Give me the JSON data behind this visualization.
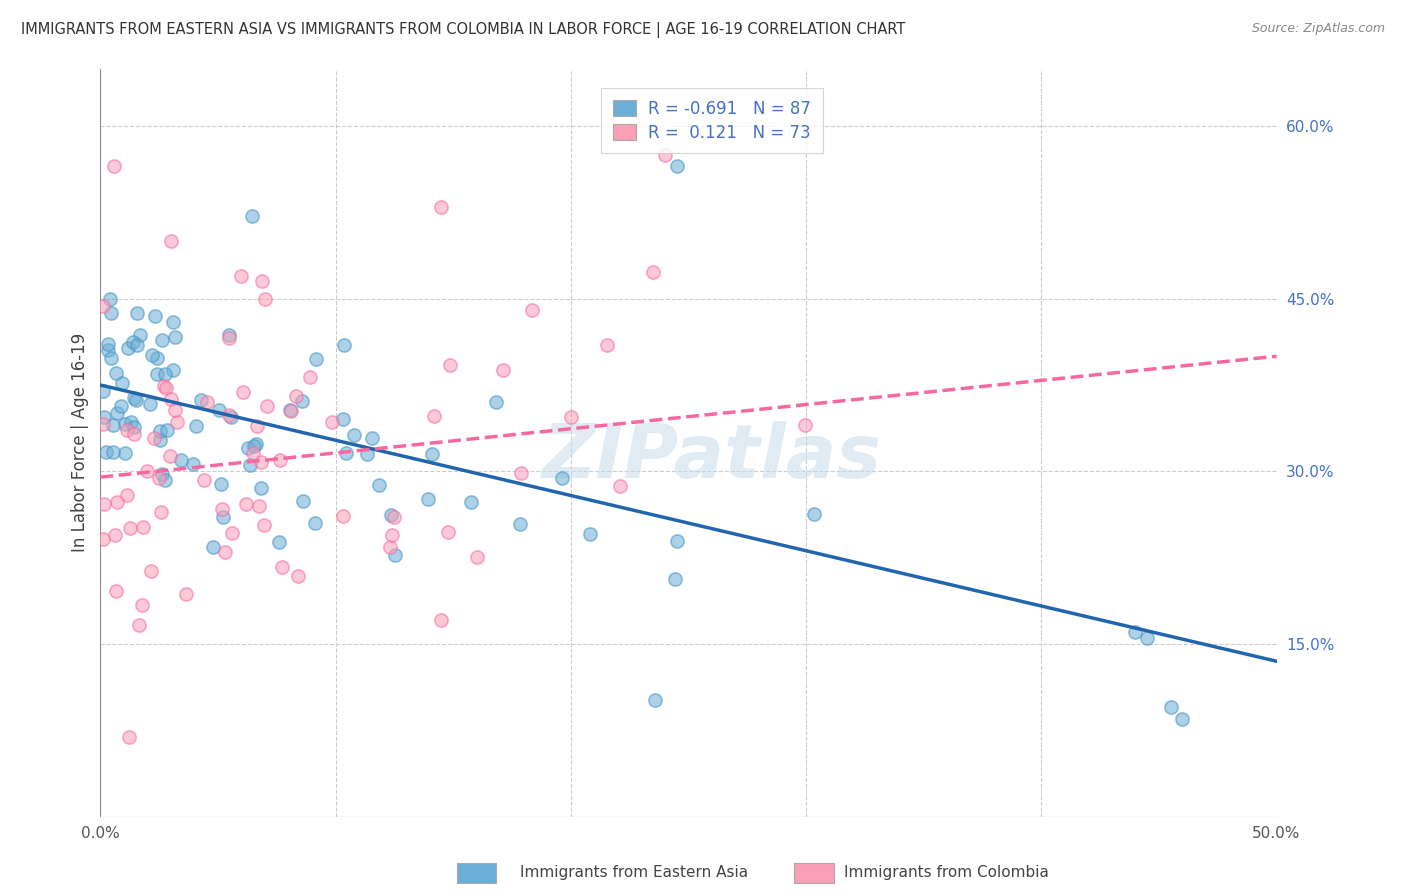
{
  "title": "IMMIGRANTS FROM EASTERN ASIA VS IMMIGRANTS FROM COLOMBIA IN LABOR FORCE | AGE 16-19 CORRELATION CHART",
  "source": "Source: ZipAtlas.com",
  "ylabel": "In Labor Force | Age 16-19",
  "xlabel_left": "Immigrants from Eastern Asia",
  "xlabel_right": "Immigrants from Colombia",
  "x_min": 0.0,
  "x_max": 0.5,
  "y_min": 0.0,
  "y_max": 0.65,
  "y_ticks": [
    0.15,
    0.3,
    0.45,
    0.6
  ],
  "y_tick_labels": [
    "15.0%",
    "30.0%",
    "45.0%",
    "60.0%"
  ],
  "legend_R_blue": "-0.691",
  "legend_N_blue": "87",
  "legend_R_pink": "0.121",
  "legend_N_pink": "73",
  "blue_color": "#6baed6",
  "pink_color": "#fa9fb5",
  "blue_edge_color": "#4393c3",
  "pink_edge_color": "#f768a1",
  "blue_line_color": "#2166ac",
  "pink_line_color": "#f768a1",
  "watermark": "ZIPatlas",
  "background_color": "#ffffff",
  "grid_color": "#cccccc",
  "title_color": "#333333",
  "source_color": "#888888",
  "tick_color_right": "#4472c4"
}
